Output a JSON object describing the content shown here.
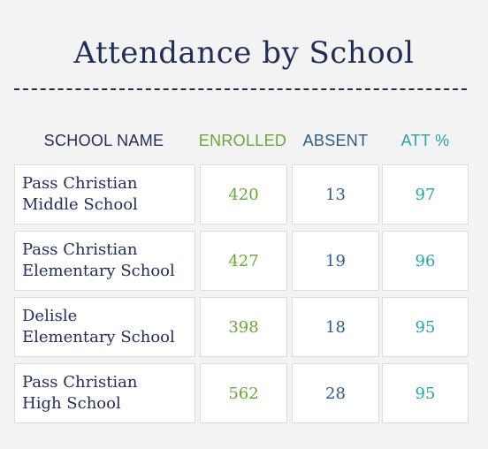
{
  "title": "Attendance by School",
  "headers": {
    "school_name": "SCHOOL NAME",
    "enrolled": "ENROLLED",
    "absent": "ABSENT",
    "att_pct": "ATT %"
  },
  "rows": [
    {
      "school": "Pass Christian\nMiddle School",
      "enrolled": "420",
      "absent": "13",
      "att": "97"
    },
    {
      "school": "Pass Christian\nElementary School",
      "enrolled": "427",
      "absent": "19",
      "att": "96"
    },
    {
      "school": "Delisle\nElementary School",
      "enrolled": "398",
      "absent": "18",
      "att": "95"
    },
    {
      "school": "Pass Christian\nHigh School",
      "enrolled": "562",
      "absent": "28",
      "att": "95"
    }
  ],
  "colors": {
    "title": "#1f2d57",
    "enrolled": "#6aa53a",
    "absent": "#2f5b85",
    "att": "#2ba3a6",
    "background": "#f3f3f3",
    "cell_background": "#ffffff"
  }
}
